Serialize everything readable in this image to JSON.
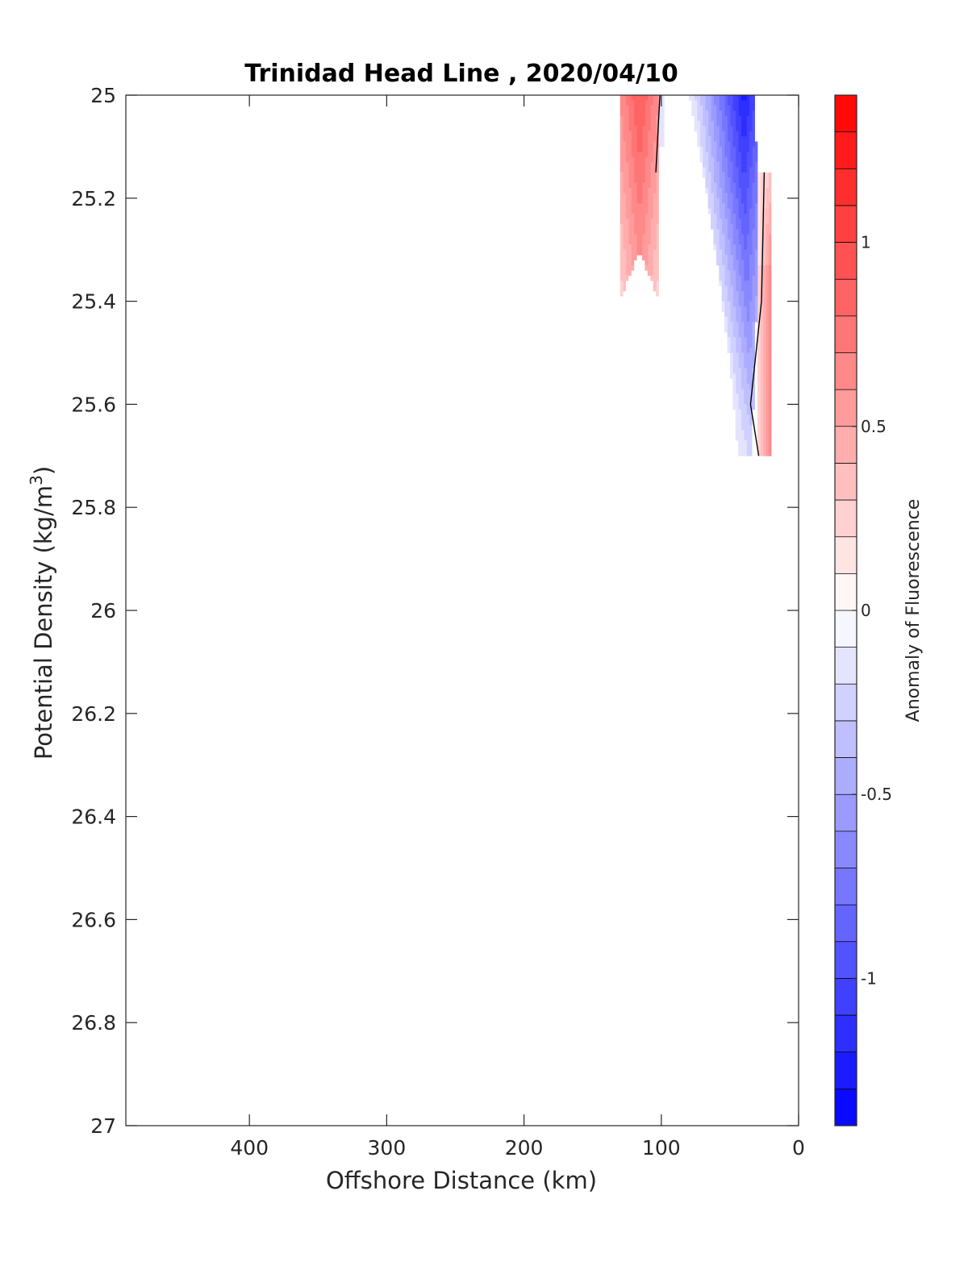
{
  "chart_data": {
    "type": "contour",
    "title": "Trinidad Head Line , 2020/04/10",
    "xlabel": "Offshore Distance (km)",
    "ylabel": "Potential Density (kg/m",
    "ylabel_sup": "3",
    "ylabel_close": ")",
    "xlim": [
      490,
      0
    ],
    "ylim": [
      25,
      27
    ],
    "x_direction": "reversed",
    "y_direction": "reversed",
    "xticks": [
      400,
      300,
      200,
      100,
      0
    ],
    "xtick_labels": [
      "400",
      "300",
      "200",
      "100",
      "0"
    ],
    "yticks": [
      25,
      25.2,
      25.4,
      25.6,
      25.8,
      26,
      26.2,
      26.4,
      26.6,
      26.8,
      27
    ],
    "ytick_labels": [
      "25",
      "25.2",
      "25.4",
      "25.6",
      "25.8",
      "26",
      "26.2",
      "26.4",
      "26.6",
      "26.8",
      "27"
    ],
    "colorbar": {
      "label": "Anomaly of Fluorescence",
      "range": [
        -1.4,
        1.4
      ],
      "ticks": [
        1,
        0.5,
        0,
        -0.5,
        -1
      ],
      "tick_labels": [
        "1",
        "0.5",
        "0",
        "-0.5",
        "-1"
      ],
      "levels": 28,
      "low_color": "#0000ff",
      "mid_color": "#ffffff",
      "high_color": "#ff0000"
    },
    "regions": [
      {
        "sign": "positive",
        "x_range": [
          130,
          102
        ],
        "y_range": [
          25.0,
          25.4
        ],
        "max_anomaly": 0.8
      },
      {
        "sign": "negative",
        "x_range": [
          102,
          98
        ],
        "y_range": [
          25.0,
          25.1
        ],
        "max_anomaly": -0.3
      },
      {
        "sign": "negative",
        "x_range": [
          80,
          28
        ],
        "y_range": [
          25.0,
          25.7
        ],
        "max_anomaly": -1.25
      },
      {
        "sign": "positive",
        "x_range": [
          30,
          20
        ],
        "y_range": [
          25.15,
          25.7
        ],
        "max_anomaly": 0.75
      }
    ],
    "zero_contours": [
      {
        "points": [
          [
            101,
            25.0
          ],
          [
            104,
            25.15
          ]
        ]
      },
      {
        "points": [
          [
            25,
            25.15
          ],
          [
            27,
            25.4
          ],
          [
            35,
            25.6
          ],
          [
            29,
            25.7
          ]
        ]
      }
    ]
  }
}
